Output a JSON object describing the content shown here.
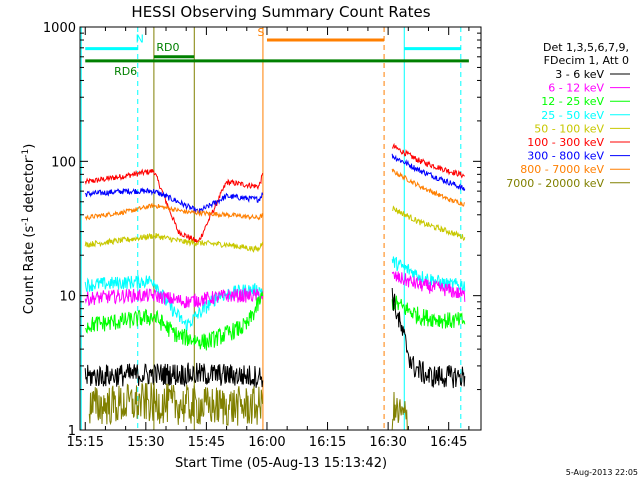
{
  "chart_data": {
    "type": "line",
    "title": "HESSI Observing Summary Count Rates",
    "xlabel": "Start Time (05-Aug-13 15:13:42)",
    "ylabel": "Count Rate (s",
    "ylabel_sup1": "-1",
    "ylabel_mid": " detector",
    "ylabel_sup2": "-1",
    "ylabel_end": ")",
    "y_scale": "log",
    "ylim": [
      1,
      1000
    ],
    "xlim": [
      "15:13:42",
      "16:53:00"
    ],
    "x_ticks": [
      "15:15",
      "15:30",
      "15:45",
      "16:00",
      "16:15",
      "16:30",
      "16:45"
    ],
    "y_ticks": [
      "1",
      "10",
      "100",
      "1000"
    ],
    "legend": {
      "placement": "right",
      "header": [
        "Det 1,3,5,6,7,9,",
        "FDecim 1, Att 0"
      ],
      "entries": [
        {
          "label": "3 - 6 keV",
          "color": "#000000"
        },
        {
          "label": "6 - 12 keV",
          "color": "#ff00ff"
        },
        {
          "label": "12 - 25 keV",
          "color": "#00ff00"
        },
        {
          "label": "25 - 50 keV",
          "color": "#00ffff"
        },
        {
          "label": "50 - 100 keV",
          "color": "#c8c800"
        },
        {
          "label": "100 - 300 keV",
          "color": "#ff0000"
        },
        {
          "label": "300 - 800 keV",
          "color": "#0000ff"
        },
        {
          "label": "800 - 7000 keV",
          "color": "#ff7f00"
        },
        {
          "label": "7000 - 20000 keV",
          "color": "#808000"
        }
      ]
    },
    "series": [
      {
        "color": "#ff0000",
        "band": "100 - 300 keV",
        "segments": [
          {
            "x": [
              "15:15",
              "15:25",
              "15:32",
              "15:38",
              "15:43",
              "15:50",
              "15:58",
              "15:59"
            ],
            "y": [
              70,
              78,
              85,
              30,
              25,
              70,
              65,
              80
            ]
          },
          {
            "x": [
              "16:31",
              "16:38",
              "16:45",
              "16:49"
            ],
            "y": [
              130,
              100,
              85,
              78
            ]
          }
        ]
      },
      {
        "color": "#0000ff",
        "band": "300 - 800 keV",
        "segments": [
          {
            "x": [
              "15:15",
              "15:25",
              "15:32",
              "15:38",
              "15:43",
              "15:50",
              "15:58",
              "15:59"
            ],
            "y": [
              57,
              60,
              60,
              50,
              42,
              55,
              52,
              58
            ]
          },
          {
            "x": [
              "16:31",
              "16:38",
              "16:45",
              "16:49"
            ],
            "y": [
              110,
              85,
              70,
              62
            ]
          }
        ]
      },
      {
        "color": "#ff7f00",
        "band": "800 - 7000 keV",
        "segments": [
          {
            "x": [
              "15:15",
              "15:25",
              "15:32",
              "15:40",
              "15:50",
              "15:58",
              "15:59"
            ],
            "y": [
              38,
              42,
              47,
              42,
              40,
              38,
              40
            ]
          },
          {
            "x": [
              "16:31",
              "16:38",
              "16:45",
              "16:49"
            ],
            "y": [
              85,
              65,
              52,
              48
            ]
          }
        ]
      },
      {
        "color": "#c8c800",
        "band": "50 - 100 keV",
        "segments": [
          {
            "x": [
              "15:15",
              "15:25",
              "15:32",
              "15:40",
              "15:50",
              "15:58",
              "15:59"
            ],
            "y": [
              24,
              26,
              28,
              25,
              24,
              22,
              26
            ]
          },
          {
            "x": [
              "16:31",
              "16:38",
              "16:45",
              "16:49"
            ],
            "y": [
              45,
              35,
              30,
              27
            ]
          }
        ]
      },
      {
        "color": "#00ffff",
        "band": "25 - 50 keV",
        "segments": [
          {
            "x": [
              "15:15",
              "15:25",
              "15:32",
              "15:35",
              "15:40",
              "15:48",
              "15:55",
              "15:59"
            ],
            "y": [
              12,
              12.5,
              13,
              9,
              6,
              10,
              11,
              11
            ]
          },
          {
            "x": [
              "16:31",
              "16:38",
              "16:45",
              "16:49"
            ],
            "y": [
              18,
              14,
              12,
              12
            ]
          }
        ]
      },
      {
        "color": "#ff00ff",
        "band": "6 - 12 keV",
        "segments": [
          {
            "x": [
              "15:15",
              "15:25",
              "15:32",
              "15:40",
              "15:50",
              "15:59"
            ],
            "y": [
              9.5,
              10,
              10,
              9,
              10,
              10
            ]
          },
          {
            "x": [
              "16:31",
              "16:38",
              "16:45",
              "16:49"
            ],
            "y": [
              14,
              12,
              11,
              10
            ]
          }
        ]
      },
      {
        "color": "#00ff00",
        "band": "12 - 25 keV",
        "segments": [
          {
            "x": [
              "15:15",
              "15:25",
              "15:32",
              "15:38",
              "15:45",
              "15:55",
              "15:59"
            ],
            "y": [
              6,
              6.5,
              7,
              5,
              4.5,
              6,
              10
            ]
          },
          {
            "x": [
              "16:31",
              "16:38",
              "16:45",
              "16:49"
            ],
            "y": [
              9,
              7,
              6.5,
              6.5
            ]
          }
        ]
      },
      {
        "color": "#000000",
        "band": "3 - 6 keV",
        "segments": [
          {
            "x": [
              "15:15",
              "15:30",
              "15:45",
              "15:59"
            ],
            "y": [
              2.5,
              2.6,
              2.6,
              2.5
            ]
          },
          {
            "x": [
              "16:31",
              "16:33",
              "16:36",
              "16:40",
              "16:49"
            ],
            "y": [
              10,
              6,
              3,
              2.5,
              2.5
            ]
          }
        ]
      },
      {
        "color": "#808000",
        "band": "7000 - 20000 keV",
        "segments": [
          {
            "x": [
              "15:16",
              "15:30",
              "15:45",
              "15:59"
            ],
            "y": [
              1.5,
              1.6,
              1.5,
              1.5
            ]
          },
          {
            "x": [
              "16:31",
              "16:35"
            ],
            "y": [
              1.4,
              1.2
            ]
          }
        ]
      }
    ],
    "vertical_lines": [
      {
        "time": "15:14",
        "color": "#00ffff",
        "style": "solid"
      },
      {
        "time": "15:28",
        "color": "#00ffff",
        "style": "dashed"
      },
      {
        "time": "15:32",
        "color": "#808000",
        "style": "solid"
      },
      {
        "time": "15:42",
        "color": "#808000",
        "style": "solid"
      },
      {
        "time": "15:59",
        "color": "#ff7f00",
        "style": "solid"
      },
      {
        "time": "16:29",
        "color": "#ff7f00",
        "style": "dashed"
      },
      {
        "time": "16:34",
        "color": "#00ffff",
        "style": "solid"
      },
      {
        "time": "16:48",
        "color": "#00ffff",
        "style": "dashed"
      }
    ],
    "flag_bars": [
      {
        "label": "N",
        "color": "#00ffff",
        "ranges": [
          [
            "15:15",
            "15:28"
          ],
          [
            "16:34",
            "16:48"
          ]
        ],
        "y": 690
      },
      {
        "label": "S",
        "color": "#ff7f00",
        "ranges": [
          [
            "16:00",
            "16:29"
          ]
        ],
        "y": 800
      },
      {
        "label": "RD0",
        "color": "#008000",
        "ranges": [
          [
            "15:32",
            "15:42"
          ]
        ],
        "y": 600
      },
      {
        "label": "RD6",
        "color": "#008000",
        "ranges": [
          [
            "15:15",
            "16:50"
          ]
        ],
        "y": 560
      }
    ],
    "timestamp": "5-Aug-2013 22:05"
  }
}
